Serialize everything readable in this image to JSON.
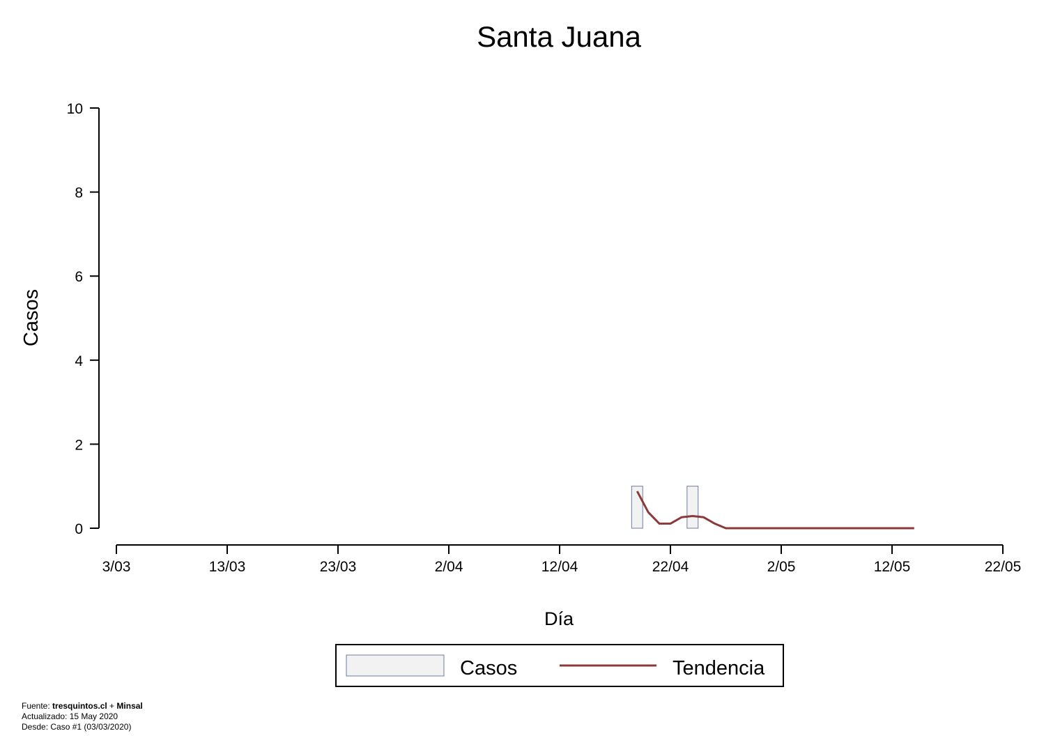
{
  "chart_data": {
    "type": "bar",
    "title": "Santa Juana",
    "xlabel": "Día",
    "ylabel": "Casos",
    "ylim": [
      0,
      10
    ],
    "yticks": [
      0,
      2,
      4,
      6,
      8,
      10
    ],
    "xlim": [
      "2020-03-03",
      "2020-05-22"
    ],
    "xticks": [
      {
        "date": "2020-03-03",
        "label": "3/03"
      },
      {
        "date": "2020-03-13",
        "label": "13/03"
      },
      {
        "date": "2020-03-23",
        "label": "23/03"
      },
      {
        "date": "2020-04-02",
        "label": "2/04"
      },
      {
        "date": "2020-04-12",
        "label": "12/04"
      },
      {
        "date": "2020-04-22",
        "label": "22/04"
      },
      {
        "date": "2020-05-02",
        "label": "2/05"
      },
      {
        "date": "2020-05-12",
        "label": "12/05"
      },
      {
        "date": "2020-05-22",
        "label": "22/05"
      }
    ],
    "grid": false,
    "legend_position": "bottom-center",
    "series": [
      {
        "name": "Casos",
        "type": "bar",
        "color": "#f2f2f2",
        "edge_color": "#6c7ba0",
        "points": [
          {
            "x": "2020-04-19",
            "y": 1
          },
          {
            "x": "2020-04-24",
            "y": 1
          }
        ]
      },
      {
        "name": "Tendencia",
        "type": "line",
        "color": "#8b3a3a",
        "points": [
          {
            "x": "2020-04-19",
            "y": 0.88
          },
          {
            "x": "2020-04-20",
            "y": 0.38
          },
          {
            "x": "2020-04-21",
            "y": 0.11
          },
          {
            "x": "2020-04-22",
            "y": 0.11
          },
          {
            "x": "2020-04-23",
            "y": 0.26
          },
          {
            "x": "2020-04-24",
            "y": 0.29
          },
          {
            "x": "2020-04-25",
            "y": 0.26
          },
          {
            "x": "2020-04-26",
            "y": 0.11
          },
          {
            "x": "2020-04-27",
            "y": 0.0
          },
          {
            "x": "2020-04-28",
            "y": 0.0
          },
          {
            "x": "2020-04-29",
            "y": 0.0
          },
          {
            "x": "2020-04-30",
            "y": 0.0
          },
          {
            "x": "2020-05-01",
            "y": 0.0
          },
          {
            "x": "2020-05-02",
            "y": 0.0
          },
          {
            "x": "2020-05-03",
            "y": 0.0
          },
          {
            "x": "2020-05-04",
            "y": 0.0
          },
          {
            "x": "2020-05-05",
            "y": 0.0
          },
          {
            "x": "2020-05-06",
            "y": 0.0
          },
          {
            "x": "2020-05-07",
            "y": 0.0
          },
          {
            "x": "2020-05-08",
            "y": 0.0
          },
          {
            "x": "2020-05-09",
            "y": 0.0
          },
          {
            "x": "2020-05-10",
            "y": 0.0
          },
          {
            "x": "2020-05-11",
            "y": 0.0
          },
          {
            "x": "2020-05-12",
            "y": 0.0
          },
          {
            "x": "2020-05-13",
            "y": 0.0
          },
          {
            "x": "2020-05-14",
            "y": 0.0
          }
        ]
      }
    ]
  },
  "footer": {
    "fuente_prefix": "Fuente: ",
    "fuente_site": "tresquintos.cl",
    "fuente_plus": " + ",
    "fuente_org": "Minsal",
    "actualizado": "Actualizado: 15 May 2020",
    "desde": "Desde: Caso #1  (03/03/2020)"
  }
}
